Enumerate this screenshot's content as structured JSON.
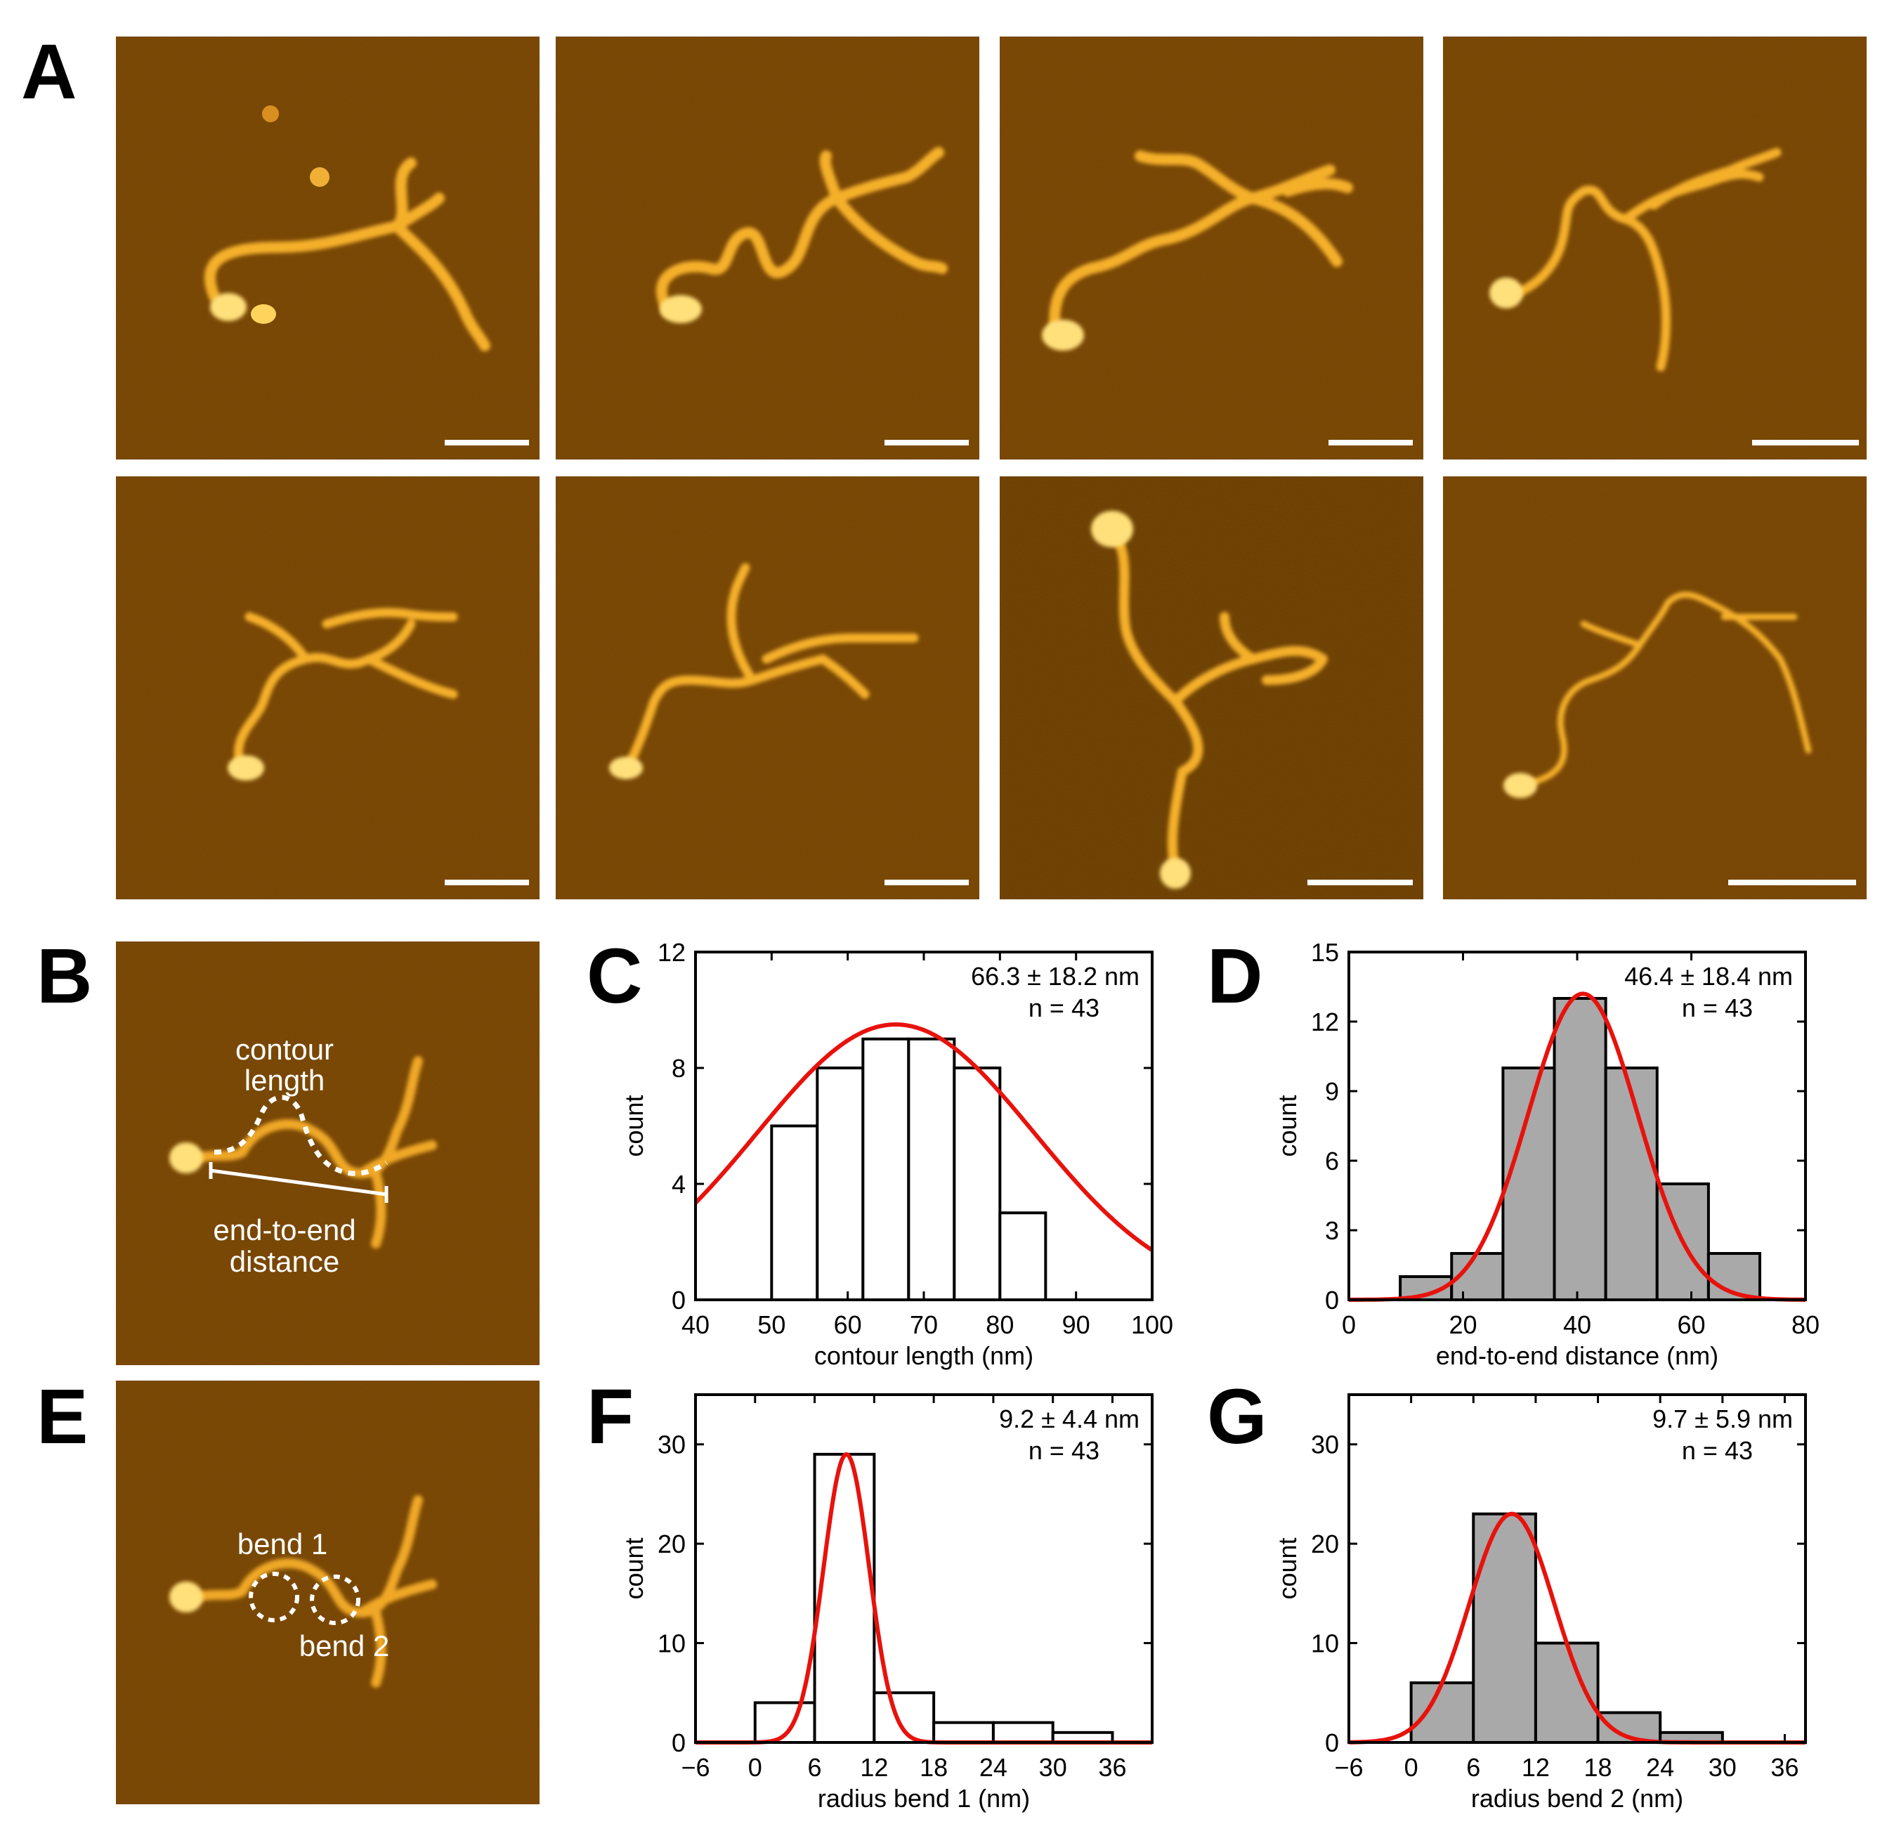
{
  "panel_letters": [
    "A",
    "B",
    "C",
    "D",
    "E",
    "F",
    "G"
  ],
  "afm_images": {
    "count": 8,
    "colormap": [
      "#2a1500",
      "#6b3a06",
      "#a85f0c",
      "#e39a20",
      "#ffd06a",
      "#fff3c8"
    ],
    "scale_bar_color": "#ffffff"
  },
  "annotations_B": {
    "contour": [
      "contour",
      "length"
    ],
    "distance": [
      "end-to-end",
      "distance"
    ]
  },
  "annotations_E": {
    "bend1": "bend 1",
    "bend2": "bend 2"
  },
  "chart_data": [
    {
      "panel": "C",
      "type": "bar",
      "bin_edges": [
        50,
        56,
        62,
        68,
        74,
        80,
        86
      ],
      "values": [
        6,
        8,
        9,
        9,
        8,
        3
      ],
      "fill": "#ffffff",
      "fit": {
        "type": "gaussian",
        "mean": 66.3,
        "sd": 18.2,
        "peak": 9.5,
        "color": "#e8120c"
      },
      "stat_text": "66.3 ± 18.2 nm",
      "n_text": "n = 43",
      "xlabel": "contour length (nm)",
      "ylabel": "count",
      "xlim": [
        40,
        100
      ],
      "ylim": [
        0,
        12
      ],
      "xticks": [
        40,
        50,
        60,
        70,
        80,
        90,
        100
      ],
      "xtick_labels": [
        "40",
        "50",
        "60",
        "70",
        "80",
        "90",
        "100"
      ],
      "yticks": [
        0,
        4,
        8,
        12
      ],
      "ytick_labels": [
        "0",
        "4",
        "8",
        "12"
      ]
    },
    {
      "panel": "D",
      "type": "bar",
      "bin_edges": [
        9,
        18,
        27,
        36,
        45,
        54,
        63,
        72
      ],
      "values": [
        1,
        2,
        10,
        13,
        10,
        5,
        2
      ],
      "fill": "#a9a9a9",
      "fit": {
        "type": "gaussian",
        "mean": 41,
        "sd": 9.6,
        "peak": 13.2,
        "color": "#e8120c"
      },
      "stat_text": "46.4 ± 18.4 nm",
      "n_text": "n = 43",
      "xlabel": "end-to-end distance (nm)",
      "ylabel": "count",
      "xlim": [
        0,
        80
      ],
      "ylim": [
        0,
        15
      ],
      "xticks": [
        0,
        20,
        40,
        60,
        80
      ],
      "xtick_labels": [
        "0",
        "20",
        "40",
        "60",
        "80"
      ],
      "yticks": [
        0,
        3,
        6,
        9,
        12,
        15
      ],
      "ytick_labels": [
        "0",
        "3",
        "6",
        "9",
        "12",
        "15"
      ]
    },
    {
      "panel": "F",
      "type": "bar",
      "bin_edges": [
        0,
        6,
        12,
        18,
        24,
        30,
        36
      ],
      "values": [
        4,
        29,
        5,
        2,
        2,
        1
      ],
      "fill": "#ffffff",
      "fit": {
        "type": "gaussian",
        "mean": 9.2,
        "sd": 2.3,
        "peak": 29,
        "color": "#e8120c"
      },
      "stat_text": "9.2 ± 4.4 nm",
      "n_text": "n = 43",
      "xlabel": "radius bend 1 (nm)",
      "ylabel": "count",
      "xlim": [
        -6,
        40
      ],
      "ylim": [
        0,
        35
      ],
      "xticks": [
        -6,
        0,
        6,
        12,
        18,
        24,
        30,
        36
      ],
      "xtick_labels": [
        "−6",
        "0",
        "6",
        "12",
        "18",
        "24",
        "30",
        "36"
      ],
      "yticks": [
        0,
        10,
        20,
        30
      ],
      "ytick_labels": [
        "0",
        "10",
        "20",
        "30"
      ]
    },
    {
      "panel": "G",
      "type": "bar",
      "bin_edges": [
        0,
        6,
        12,
        18,
        24,
        30
      ],
      "values": [
        6,
        23,
        10,
        3,
        1
      ],
      "fill": "#a9a9a9",
      "fit": {
        "type": "gaussian",
        "mean": 9.7,
        "sd": 4.1,
        "peak": 23,
        "color": "#e8120c"
      },
      "stat_text": "9.7 ± 5.9 nm",
      "n_text": "n = 43",
      "xlabel": "radius bend 2 (nm)",
      "ylabel": "count",
      "xlim": [
        -6,
        38
      ],
      "ylim": [
        0,
        35
      ],
      "xticks": [
        -6,
        0,
        6,
        12,
        18,
        24,
        30,
        36
      ],
      "xtick_labels": [
        "−6",
        "0",
        "6",
        "12",
        "18",
        "24",
        "30",
        "36"
      ],
      "yticks": [
        0,
        10,
        20,
        30
      ],
      "ytick_labels": [
        "0",
        "10",
        "20",
        "30"
      ]
    }
  ]
}
